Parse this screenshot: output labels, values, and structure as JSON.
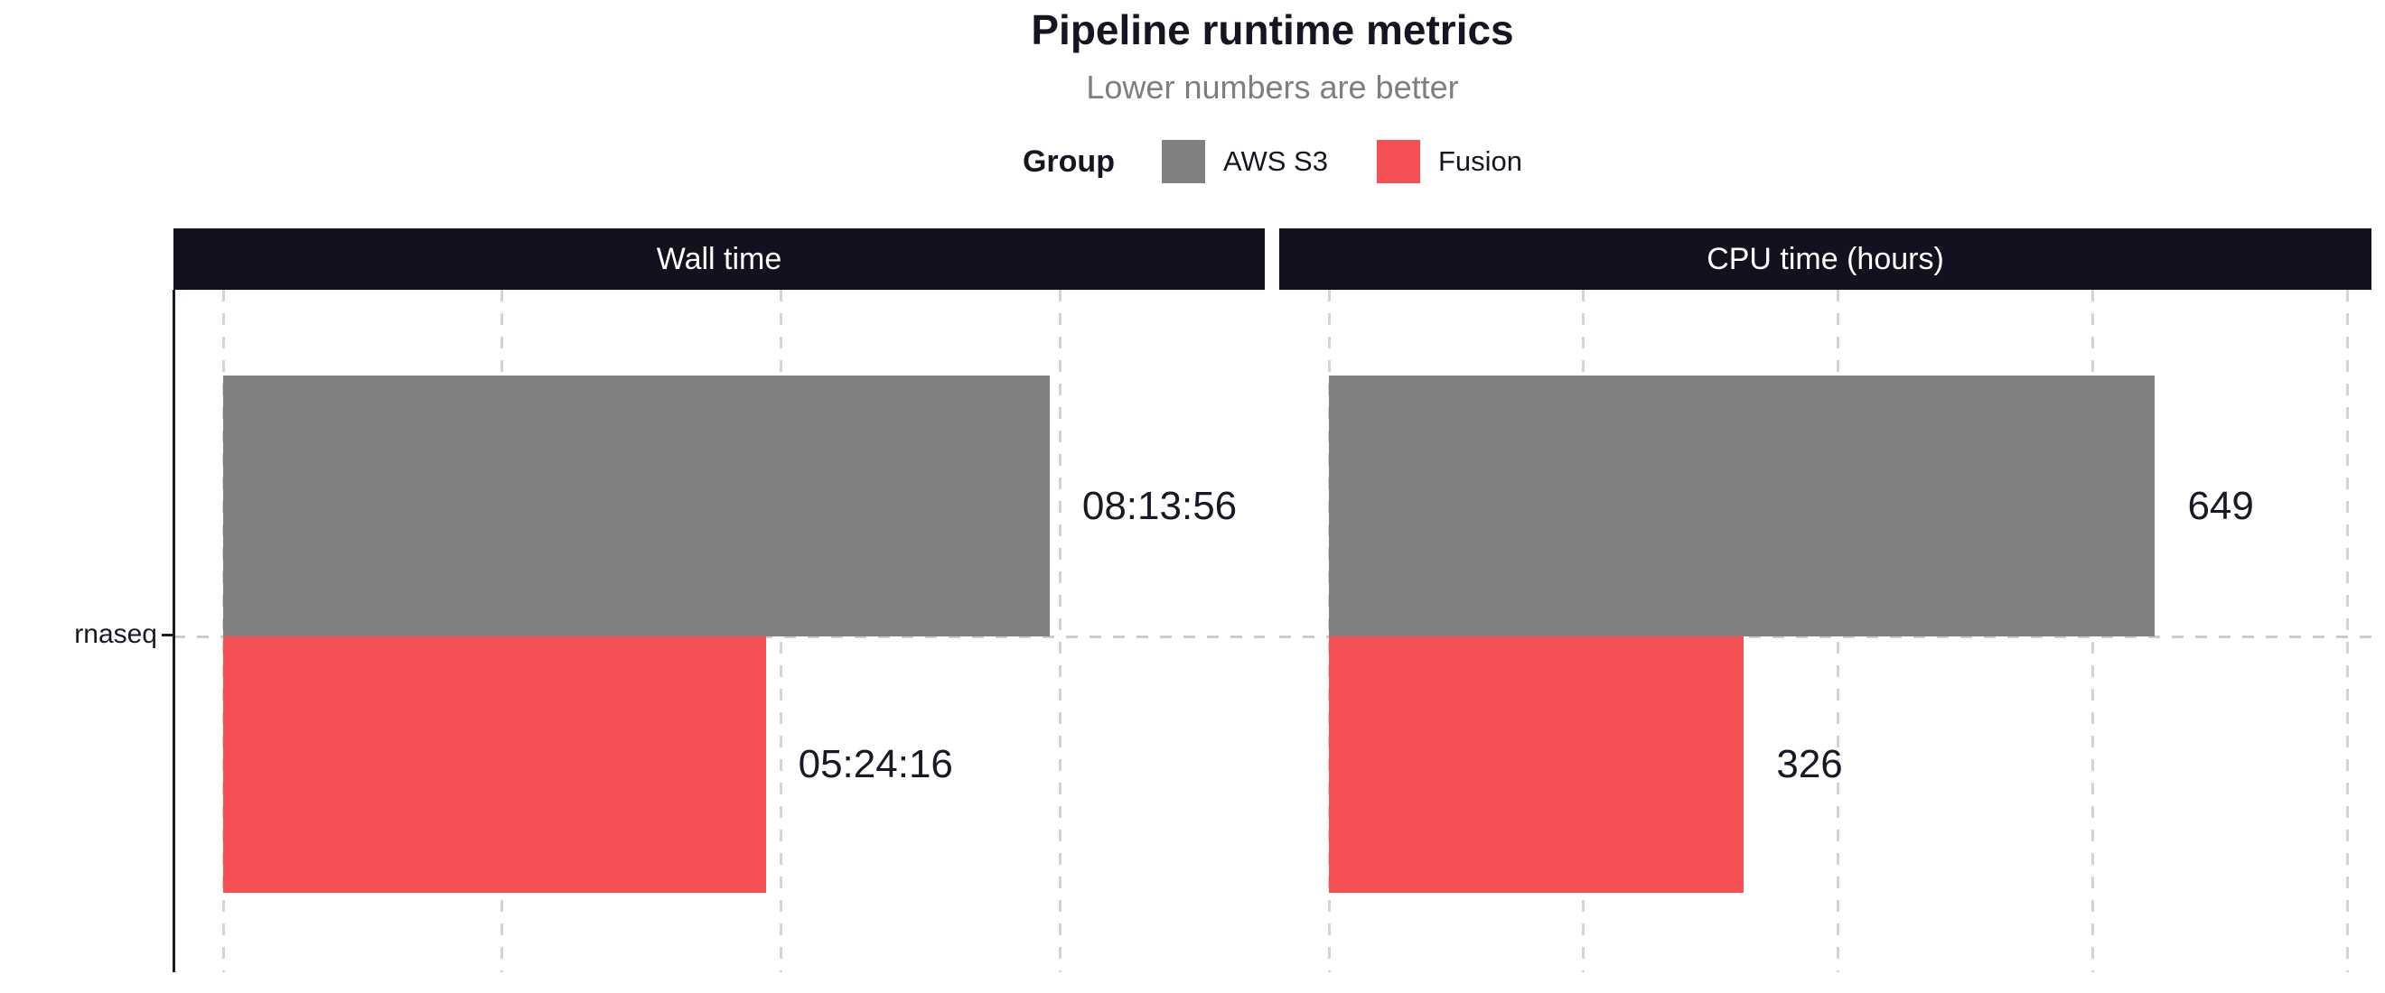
{
  "header": {
    "title": "Pipeline runtime metrics",
    "subtitle": "Lower numbers are better"
  },
  "legend": {
    "title": "Group",
    "items": [
      {
        "label": "AWS S3",
        "color": "#808080"
      },
      {
        "label": "Fusion",
        "color": "#f55054"
      }
    ]
  },
  "y_axis": {
    "category": "rnaseq"
  },
  "colors": {
    "panel_header_bg": "#13101f",
    "panel_header_text": "#ffffff",
    "text_dark": "#171522",
    "subtitle_gray": "#7e7e7e",
    "gridline": "#d4d4d4",
    "bar_gray": "#808080",
    "bar_red": "#f55054"
  },
  "chart_data": {
    "type": "bar",
    "orientation": "horizontal",
    "title": "Pipeline runtime metrics",
    "subtitle": "Lower numbers are better",
    "legend_position": "top",
    "grid": "dashed",
    "categories": [
      "rnaseq"
    ],
    "facets": [
      {
        "title": "Wall time",
        "axis": {
          "unit": "seconds",
          "max": 37350,
          "gridlines": [
            0,
            10000,
            20000,
            30000
          ]
        },
        "series": [
          {
            "name": "AWS S3",
            "value": 29636,
            "label": "08:13:56",
            "color": "#808080"
          },
          {
            "name": "Fusion",
            "value": 19456,
            "label": "05:24:16",
            "color": "#f55054"
          }
        ]
      },
      {
        "title": "CPU time (hours)",
        "axis": {
          "unit": "hours",
          "max": 819,
          "gridlines": [
            0,
            200,
            400,
            600,
            800
          ]
        },
        "series": [
          {
            "name": "AWS S3",
            "value": 649,
            "label": "649",
            "color": "#808080"
          },
          {
            "name": "Fusion",
            "value": 326,
            "label": "326",
            "color": "#f55054"
          }
        ]
      }
    ]
  }
}
